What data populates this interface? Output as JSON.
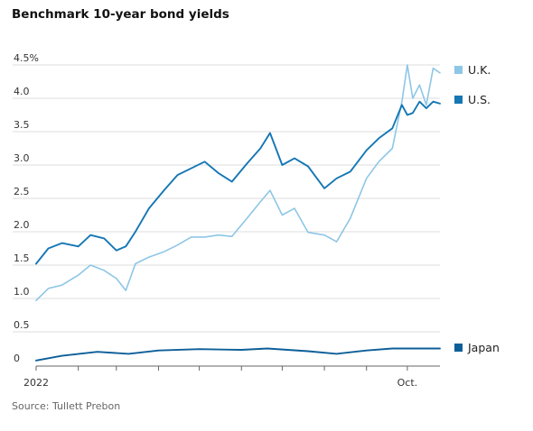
{
  "title": "Benchmark 10-year bond yields",
  "source": "Source: Tullett Prebon",
  "colors": {
    "uk": "#8ec6e6",
    "us": "#1577b4",
    "japan": "#0d5f99",
    "grid": "#dddddd",
    "axis": "#666666"
  },
  "chart_data": {
    "type": "line",
    "title": "Benchmark 10-year bond yields",
    "xlabel": "",
    "ylabel": "",
    "ylim": [
      0,
      4.5
    ],
    "yticks": [
      "0",
      "0.5",
      "1.0",
      "1.5",
      "2.0",
      "2.5",
      "3.0",
      "3.5",
      "4.0",
      "4.5%"
    ],
    "ytick_values": [
      0,
      0.5,
      1.0,
      1.5,
      2.0,
      2.5,
      3.0,
      3.5,
      4.0,
      4.5
    ],
    "xticks": [
      "2022",
      "Oct."
    ],
    "xtick_dates": [
      "2022-01-01",
      "2022-10-01"
    ],
    "xlim": [
      "2022-01-01",
      "2022-10-25"
    ],
    "grid": true,
    "legend_position": "right, beside line ends",
    "series": [
      {
        "name": "U.K.",
        "key": "uk",
        "x": [
          "2022-01-01",
          "2022-01-10",
          "2022-01-20",
          "2022-02-01",
          "2022-02-10",
          "2022-02-20",
          "2022-03-01",
          "2022-03-08",
          "2022-03-15",
          "2022-03-25",
          "2022-04-05",
          "2022-04-15",
          "2022-04-25",
          "2022-05-05",
          "2022-05-15",
          "2022-05-25",
          "2022-06-05",
          "2022-06-15",
          "2022-06-22",
          "2022-07-01",
          "2022-07-10",
          "2022-07-20",
          "2022-08-01",
          "2022-08-10",
          "2022-08-20",
          "2022-09-01",
          "2022-09-10",
          "2022-09-20",
          "2022-09-27",
          "2022-10-01",
          "2022-10-05",
          "2022-10-10",
          "2022-10-15",
          "2022-10-20",
          "2022-10-25"
        ],
        "y": [
          0.97,
          1.15,
          1.2,
          1.35,
          1.5,
          1.42,
          1.3,
          1.12,
          1.52,
          1.62,
          1.7,
          1.8,
          1.92,
          1.92,
          1.95,
          1.93,
          2.2,
          2.45,
          2.62,
          2.25,
          2.35,
          1.99,
          1.95,
          1.85,
          2.2,
          2.8,
          3.05,
          3.25,
          3.95,
          4.5,
          4.0,
          4.2,
          3.9,
          4.45,
          4.38
        ]
      },
      {
        "name": "U.S.",
        "key": "us",
        "x": [
          "2022-01-01",
          "2022-01-10",
          "2022-01-20",
          "2022-02-01",
          "2022-02-10",
          "2022-02-20",
          "2022-03-01",
          "2022-03-08",
          "2022-03-15",
          "2022-03-25",
          "2022-04-05",
          "2022-04-15",
          "2022-04-25",
          "2022-05-05",
          "2022-05-15",
          "2022-05-25",
          "2022-06-05",
          "2022-06-15",
          "2022-06-22",
          "2022-07-01",
          "2022-07-10",
          "2022-07-20",
          "2022-08-01",
          "2022-08-10",
          "2022-08-20",
          "2022-09-01",
          "2022-09-10",
          "2022-09-20",
          "2022-09-27",
          "2022-10-01",
          "2022-10-05",
          "2022-10-10",
          "2022-10-15",
          "2022-10-20",
          "2022-10-25"
        ],
        "y": [
          1.52,
          1.75,
          1.83,
          1.78,
          1.95,
          1.9,
          1.72,
          1.78,
          2.0,
          2.35,
          2.62,
          2.85,
          2.95,
          3.05,
          2.88,
          2.75,
          3.02,
          3.25,
          3.48,
          3.0,
          3.1,
          2.98,
          2.65,
          2.8,
          2.9,
          3.22,
          3.4,
          3.55,
          3.9,
          3.75,
          3.78,
          3.95,
          3.85,
          3.95,
          3.92
        ]
      },
      {
        "name": "Japan",
        "key": "japan",
        "x": [
          "2022-01-01",
          "2022-01-20",
          "2022-02-15",
          "2022-03-10",
          "2022-04-01",
          "2022-05-01",
          "2022-06-01",
          "2022-06-20",
          "2022-07-20",
          "2022-08-10",
          "2022-09-01",
          "2022-09-20",
          "2022-10-10",
          "2022-10-25"
        ],
        "y": [
          0.07,
          0.14,
          0.2,
          0.17,
          0.22,
          0.24,
          0.23,
          0.25,
          0.21,
          0.17,
          0.22,
          0.25,
          0.25,
          0.25
        ]
      }
    ]
  }
}
